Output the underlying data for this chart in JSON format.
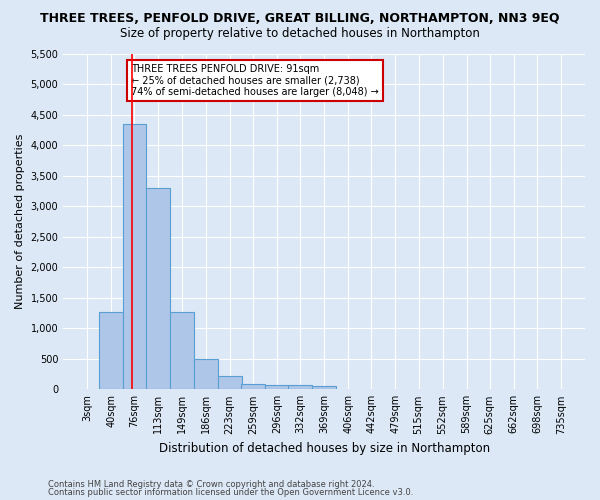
{
  "title": "THREE TREES, PENFOLD DRIVE, GREAT BILLING, NORTHAMPTON, NN3 9EQ",
  "subtitle": "Size of property relative to detached houses in Northampton",
  "xlabel": "Distribution of detached houses by size in Northampton",
  "ylabel": "Number of detached properties",
  "bin_labels": [
    "3sqm",
    "40sqm",
    "76sqm",
    "113sqm",
    "149sqm",
    "186sqm",
    "223sqm",
    "259sqm",
    "296sqm",
    "332sqm",
    "369sqm",
    "406sqm",
    "442sqm",
    "479sqm",
    "515sqm",
    "552sqm",
    "589sqm",
    "625sqm",
    "662sqm",
    "698sqm",
    "735sqm"
  ],
  "bin_edges": [
    3,
    40,
    76,
    113,
    149,
    186,
    223,
    259,
    296,
    332,
    369,
    406,
    442,
    479,
    515,
    552,
    589,
    625,
    662,
    698,
    735
  ],
  "bar_heights": [
    0,
    1260,
    4350,
    3300,
    1270,
    490,
    220,
    90,
    65,
    65,
    55,
    0,
    0,
    0,
    0,
    0,
    0,
    0,
    0,
    0
  ],
  "bar_color": "#aec6e8",
  "bar_edge_color": "#5a9fd4",
  "red_line_x": 91,
  "ylim": [
    0,
    5500
  ],
  "yticks": [
    0,
    500,
    1000,
    1500,
    2000,
    2500,
    3000,
    3500,
    4000,
    4500,
    5000,
    5500
  ],
  "annotation_title": "THREE TREES PENFOLD DRIVE: 91sqm",
  "annotation_line1": "← 25% of detached houses are smaller (2,738)",
  "annotation_line2": "74% of semi-detached houses are larger (8,048) →",
  "annotation_box_color": "#ffffff",
  "annotation_box_edge": "#cc0000",
  "footer1": "Contains HM Land Registry data © Crown copyright and database right 2024.",
  "footer2": "Contains public sector information licensed under the Open Government Licence v3.0.",
  "bg_color": "#dce8f5",
  "plot_bg_color": "#dce8f5",
  "grid_color": "#ffffff",
  "title_fontsize": 9,
  "subtitle_fontsize": 8.5,
  "ylabel_fontsize": 8,
  "xlabel_fontsize": 8.5,
  "tick_fontsize": 7,
  "footer_fontsize": 6,
  "annot_fontsize": 7
}
